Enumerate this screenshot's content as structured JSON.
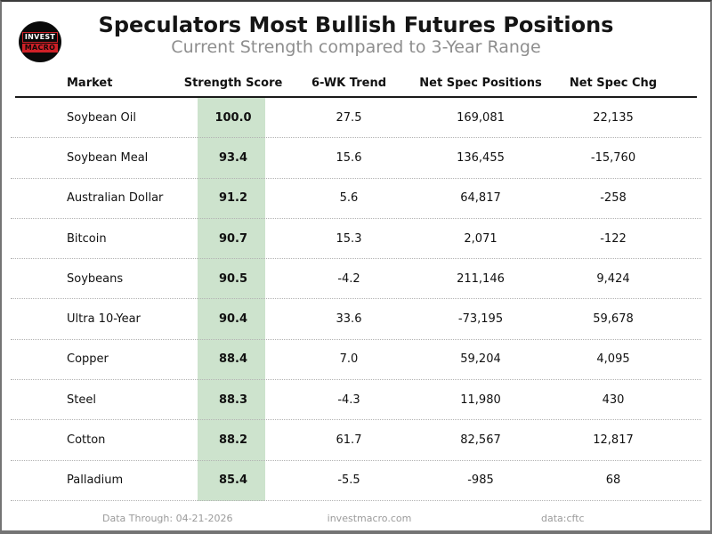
{
  "logo": {
    "line1": "INVEST",
    "line2": "MACRO"
  },
  "chart_data": {
    "type": "table",
    "title": "Speculators Most Bullish Futures Positions",
    "subtitle": "Current Strength compared to 3-Year Range",
    "columns": [
      "Market",
      "Strength Score",
      "6-WK Trend",
      "Net Spec Positions",
      "Net Spec Chg"
    ],
    "rows": [
      {
        "market": "Soybean Oil",
        "strength_score": "100.0",
        "wk6_trend": "27.5",
        "net_spec_positions": "169,081",
        "net_spec_chg": "22,135"
      },
      {
        "market": "Soybean Meal",
        "strength_score": "93.4",
        "wk6_trend": "15.6",
        "net_spec_positions": "136,455",
        "net_spec_chg": "-15,760"
      },
      {
        "market": "Australian Dollar",
        "strength_score": "91.2",
        "wk6_trend": "5.6",
        "net_spec_positions": "64,817",
        "net_spec_chg": "-258"
      },
      {
        "market": "Bitcoin",
        "strength_score": "90.7",
        "wk6_trend": "15.3",
        "net_spec_positions": "2,071",
        "net_spec_chg": "-122"
      },
      {
        "market": "Soybeans",
        "strength_score": "90.5",
        "wk6_trend": "-4.2",
        "net_spec_positions": "211,146",
        "net_spec_chg": "9,424"
      },
      {
        "market": "Ultra 10-Year",
        "strength_score": "90.4",
        "wk6_trend": "33.6",
        "net_spec_positions": "-73,195",
        "net_spec_chg": "59,678"
      },
      {
        "market": "Copper",
        "strength_score": "88.4",
        "wk6_trend": "7.0",
        "net_spec_positions": "59,204",
        "net_spec_chg": "4,095"
      },
      {
        "market": "Steel",
        "strength_score": "88.3",
        "wk6_trend": "-4.3",
        "net_spec_positions": "11,980",
        "net_spec_chg": "430"
      },
      {
        "market": "Cotton",
        "strength_score": "88.2",
        "wk6_trend": "61.7",
        "net_spec_positions": "82,567",
        "net_spec_chg": "12,817"
      },
      {
        "market": "Palladium",
        "strength_score": "85.4",
        "wk6_trend": "-5.5",
        "net_spec_positions": "-985",
        "net_spec_chg": "68"
      }
    ],
    "layout": {
      "grid": "dotted-row-separators",
      "score_column_highlighted": true
    }
  },
  "footer": {
    "data_through": "Data Through: 04-21-2026",
    "website": "investmacro.com",
    "source": "data:cftc"
  },
  "colors": {
    "score_highlight": "#cde3cd",
    "logo_red": "#cf2027",
    "logo_bg": "#0a0a0a",
    "subtitle_gray": "#8e8e8e"
  }
}
